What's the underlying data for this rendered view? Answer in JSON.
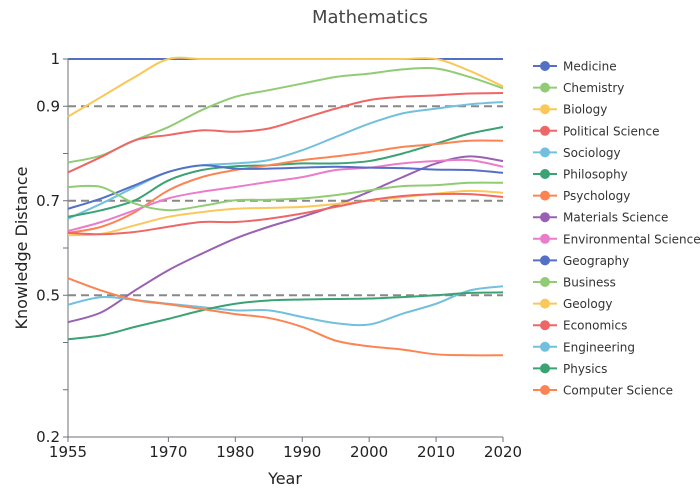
{
  "chart_data": {
    "type": "line",
    "title": "Mathematics",
    "xlabel": "Year",
    "ylabel": "Knowledge Distance",
    "xlim": [
      1955,
      2020
    ],
    "ylim": [
      0.2,
      1
    ],
    "x_ticks": [
      "1955",
      "1970",
      "1980",
      "1990",
      "2000",
      "2010",
      "2020"
    ],
    "y_ticks": [
      "1",
      "0.9",
      "0.7",
      "0.5",
      "0.2"
    ],
    "y_minor_ticks": [
      0.8,
      0.6,
      0.4,
      0.3
    ],
    "reference_lines": [
      0.9,
      0.7,
      0.5
    ],
    "grid": false,
    "legend_position": "right",
    "x": [
      1955,
      1960,
      1965,
      1970,
      1975,
      1980,
      1985,
      1990,
      1995,
      2000,
      2005,
      2010,
      2015,
      2020
    ],
    "series": [
      {
        "name": "Medicine",
        "color": "#5470c6",
        "values": [
          1,
          1,
          1,
          1,
          1,
          1,
          1,
          1,
          1,
          1,
          1,
          1,
          1,
          1
        ]
      },
      {
        "name": "Chemistry",
        "color": "#91cc75",
        "values": [
          0.781,
          0.796,
          0.828,
          0.856,
          0.892,
          0.92,
          0.934,
          0.948,
          0.962,
          0.969,
          0.978,
          0.98,
          0.962,
          0.938
        ]
      },
      {
        "name": "Biology",
        "color": "#fac858",
        "values": [
          0.878,
          0.92,
          0.962,
          1,
          1,
          1,
          1,
          1,
          1,
          1,
          1,
          1,
          0.975,
          0.942
        ]
      },
      {
        "name": "Political Science",
        "color": "#ee6666",
        "values": [
          0.76,
          0.793,
          0.828,
          0.839,
          0.849,
          0.846,
          0.853,
          0.874,
          0.895,
          0.913,
          0.92,
          0.923,
          0.927,
          0.928
        ]
      },
      {
        "name": "Sociology",
        "color": "#73c0de",
        "values": [
          0.662,
          0.694,
          0.729,
          0.761,
          0.775,
          0.779,
          0.786,
          0.807,
          0.835,
          0.863,
          0.885,
          0.895,
          0.904,
          0.909
        ]
      },
      {
        "name": "Philosophy",
        "color": "#3ba272",
        "values": [
          0.666,
          0.68,
          0.701,
          0.743,
          0.765,
          0.773,
          0.775,
          0.779,
          0.779,
          0.784,
          0.8,
          0.821,
          0.842,
          0.856
        ]
      },
      {
        "name": "Psychology",
        "color": "#fc8452",
        "values": [
          0.632,
          0.645,
          0.676,
          0.722,
          0.75,
          0.765,
          0.775,
          0.786,
          0.794,
          0.803,
          0.814,
          0.82,
          0.827,
          0.827
        ]
      },
      {
        "name": "Materials Science",
        "color": "#9a60b4",
        "values": [
          0.443,
          0.464,
          0.51,
          0.553,
          0.588,
          0.62,
          0.645,
          0.666,
          0.69,
          0.719,
          0.75,
          0.779,
          0.794,
          0.784
        ]
      },
      {
        "name": "Environmental Science",
        "color": "#ea7ccc",
        "values": [
          0.636,
          0.655,
          0.68,
          0.705,
          0.719,
          0.729,
          0.74,
          0.75,
          0.765,
          0.77,
          0.779,
          0.784,
          0.786,
          0.772
        ]
      },
      {
        "name": "Geography",
        "color": "#5470c6",
        "values": [
          0.683,
          0.705,
          0.733,
          0.761,
          0.775,
          0.768,
          0.768,
          0.77,
          0.772,
          0.77,
          0.769,
          0.766,
          0.765,
          0.759
        ]
      },
      {
        "name": "Business",
        "color": "#91cc75",
        "values": [
          0.729,
          0.729,
          0.694,
          0.68,
          0.689,
          0.701,
          0.702,
          0.705,
          0.712,
          0.722,
          0.731,
          0.733,
          0.738,
          0.738
        ]
      },
      {
        "name": "Geology",
        "color": "#fac858",
        "values": [
          0.627,
          0.63,
          0.648,
          0.666,
          0.676,
          0.683,
          0.685,
          0.687,
          0.693,
          0.7,
          0.708,
          0.715,
          0.721,
          0.717
        ]
      },
      {
        "name": "Economics",
        "color": "#ee6666",
        "values": [
          0.632,
          0.629,
          0.634,
          0.645,
          0.655,
          0.655,
          0.662,
          0.673,
          0.687,
          0.701,
          0.71,
          0.714,
          0.714,
          0.708
        ]
      },
      {
        "name": "Engineering",
        "color": "#73c0de",
        "values": [
          0.48,
          0.496,
          0.49,
          0.482,
          0.475,
          0.468,
          0.468,
          0.454,
          0.441,
          0.438,
          0.461,
          0.482,
          0.51,
          0.519
        ]
      },
      {
        "name": "Physics",
        "color": "#3ba272",
        "values": [
          0.407,
          0.415,
          0.433,
          0.45,
          0.468,
          0.482,
          0.489,
          0.491,
          0.492,
          0.493,
          0.496,
          0.5,
          0.505,
          0.506
        ]
      },
      {
        "name": "Computer Science",
        "color": "#fc8452",
        "values": [
          0.536,
          0.51,
          0.49,
          0.481,
          0.471,
          0.46,
          0.452,
          0.433,
          0.404,
          0.392,
          0.385,
          0.375,
          0.373,
          0.373
        ]
      }
    ]
  }
}
